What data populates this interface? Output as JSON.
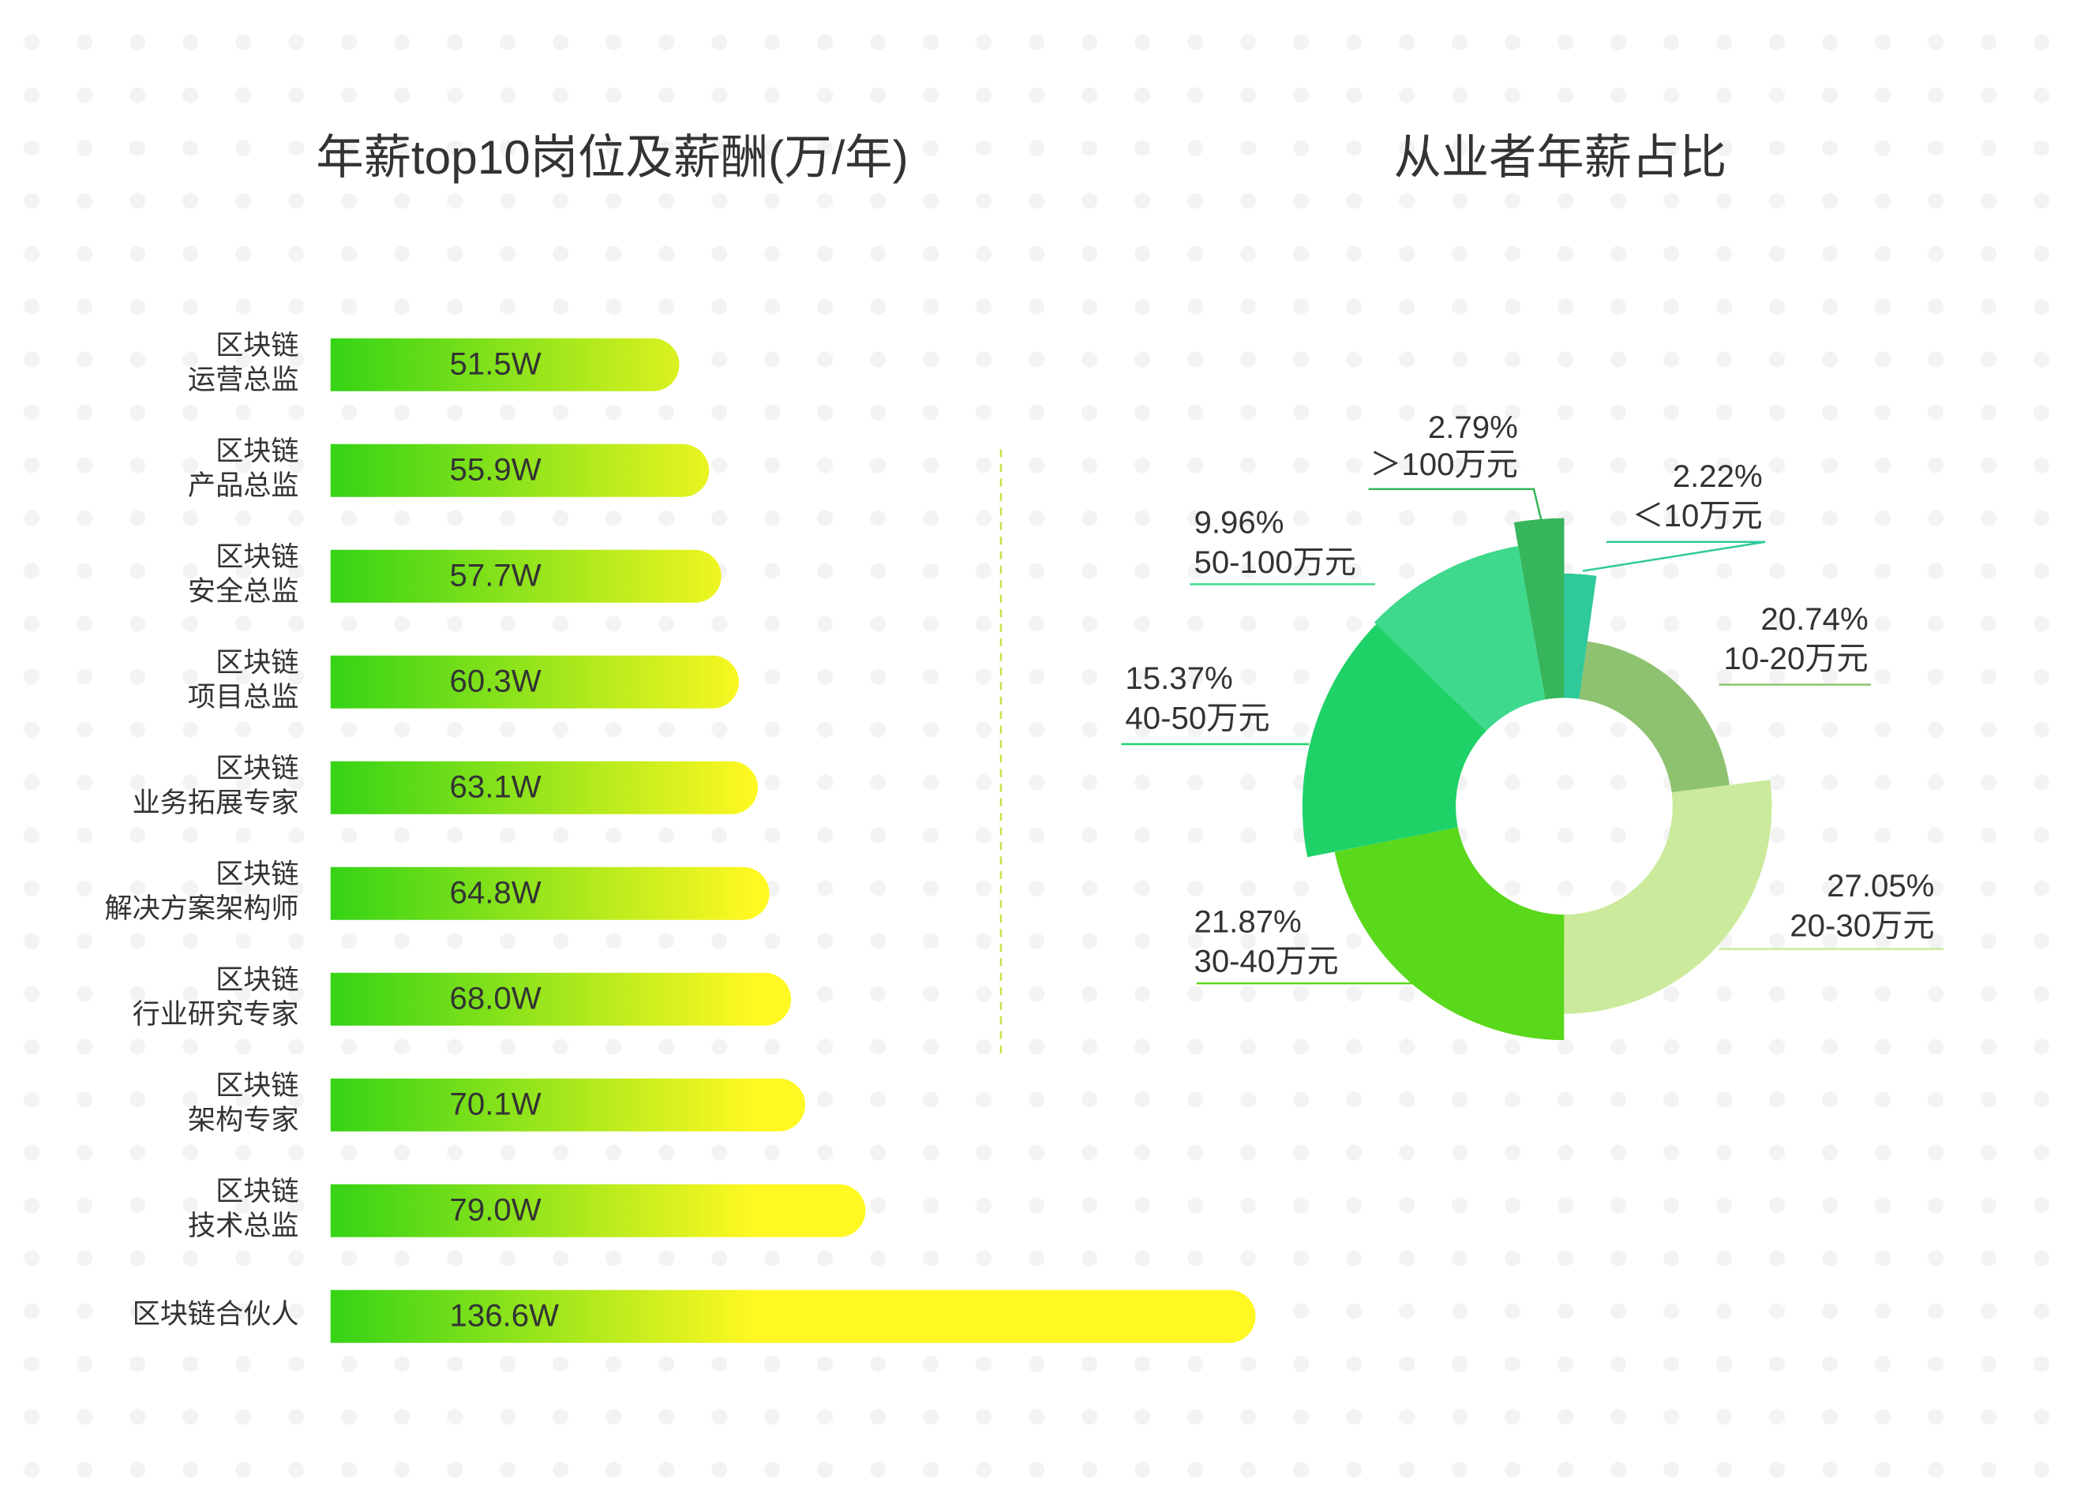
{
  "chart_data": [
    {
      "type": "hbar",
      "title": "年薪top10岗位及薪酬(万/年)",
      "categories": [
        "区块链\n运营总监",
        "区块链\n产品总监",
        "区块链\n安全总监",
        "区块链\n项目总监",
        "区块链\n业务拓展专家",
        "区块链\n解决方案架构师",
        "区块链\n行业研究专家",
        "区块链\n架构专家",
        "区块链\n技术总监",
        "区块链合伙人"
      ],
      "values": [
        51.5,
        55.9,
        57.7,
        60.3,
        63.1,
        64.8,
        68.0,
        70.1,
        79.0,
        136.6
      ],
      "value_labels": [
        "51.5W",
        "55.9W",
        "57.7W",
        "60.3W",
        "63.1W",
        "64.8W",
        "68.0W",
        "70.1W",
        "79.0W",
        "136.6W"
      ],
      "xlim": [
        0,
        140
      ],
      "colors": [
        "#35d316",
        "#fff822"
      ]
    },
    {
      "type": "rose",
      "title": "从业者年薪占比",
      "categories": [
        "＜10万元",
        "10-20万元",
        "20-30万元",
        "30-40万元",
        "40-50万元",
        "50-100万元",
        "＞100万元"
      ],
      "values": [
        2.22,
        20.74,
        27.05,
        21.87,
        15.37,
        9.96,
        2.79
      ],
      "value_labels": [
        "2.22%",
        "20.74%",
        "27.05%",
        "21.87%",
        "15.37%",
        "9.96%",
        "2.79%"
      ],
      "colors": [
        "#2fc99b",
        "#8fc270",
        "#cbea9c",
        "#5ad81c",
        "#1fd268",
        "#3ed98c",
        "#36b55c"
      ]
    }
  ]
}
